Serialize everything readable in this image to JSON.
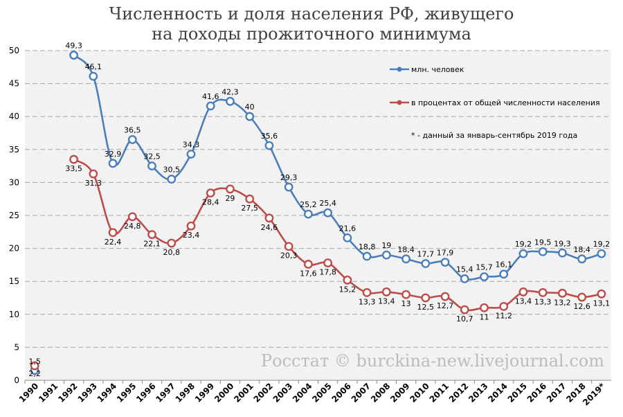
{
  "title_line1": "Численность и доля населения РФ, живущего",
  "title_line2": "на доходы прожиточного минимума",
  "watermark": "Росстат © burckina-new.livejournal.com",
  "colors": {
    "series1": "#4a7ebb",
    "series2": "#be4b48",
    "plot_bg": "#f2f2f2",
    "grid": "#a6a6a6"
  },
  "chart_data": {
    "type": "line",
    "categories": [
      "1990",
      "1991",
      "1992",
      "1993",
      "1994",
      "1995",
      "1996",
      "1997",
      "1998",
      "1999",
      "2000",
      "2001",
      "2002",
      "2003",
      "2004",
      "2005",
      "2006",
      "2007",
      "2008",
      "2009",
      "2010",
      "2011",
      "2012",
      "2013",
      "2014",
      "2015",
      "2016",
      "2017",
      "2018",
      "2019*"
    ],
    "ylim": [
      0,
      50
    ],
    "yticks": [
      0,
      5,
      10,
      15,
      20,
      25,
      30,
      35,
      40,
      45,
      50
    ],
    "grid": true,
    "legend_position": "top-right",
    "note": "* - данный за январь-сентябрь 2019 года",
    "series": [
      {
        "name": "млн. человек",
        "values": [
          1.5,
          null,
          49.3,
          46.1,
          32.9,
          36.5,
          32.5,
          30.5,
          34.3,
          41.6,
          42.3,
          40,
          35.6,
          29.3,
          25.2,
          25.4,
          21.6,
          18.8,
          19,
          18.4,
          17.7,
          17.9,
          15.4,
          15.7,
          16.1,
          19.2,
          19.5,
          19.3,
          18.4,
          19.2
        ],
        "labels": [
          "1,5",
          "",
          "49,3",
          "46,1",
          "32,9",
          "36,5",
          "32,5",
          "30,5",
          "34,3",
          "41,6",
          "42,3",
          "40",
          "35,6",
          "29,3",
          "25,2",
          "25,4",
          "21,6",
          "18,8",
          "19",
          "18,4",
          "17,7",
          "17,9",
          "15,4",
          "15,7",
          "16,1",
          "19,2",
          "19,5",
          "19,3",
          "18,4",
          "19,2"
        ]
      },
      {
        "name": "в процентах от общей численности населения",
        "values": [
          2.2,
          null,
          33.5,
          31.3,
          22.4,
          24.8,
          22.1,
          20.8,
          23.4,
          28.4,
          29,
          27.5,
          24.6,
          20.3,
          17.6,
          17.8,
          15.2,
          13.3,
          13.4,
          13,
          12.5,
          12.7,
          10.7,
          11,
          11.2,
          13.4,
          13.3,
          13.2,
          12.6,
          13.1
        ],
        "labels": [
          "2,2",
          "",
          "33,5",
          "31,3",
          "22,4",
          "24,8",
          "22,1",
          "20,8",
          "23,4",
          "28,4",
          "29",
          "27,5",
          "24,6",
          "20,3",
          "17,6",
          "17,8",
          "15,2",
          "13,3",
          "13,4",
          "13",
          "12,5",
          "12,7",
          "10,7",
          "11",
          "11,2",
          "13,4",
          "13,3",
          "13,2",
          "12,6",
          "13,1"
        ]
      }
    ]
  }
}
